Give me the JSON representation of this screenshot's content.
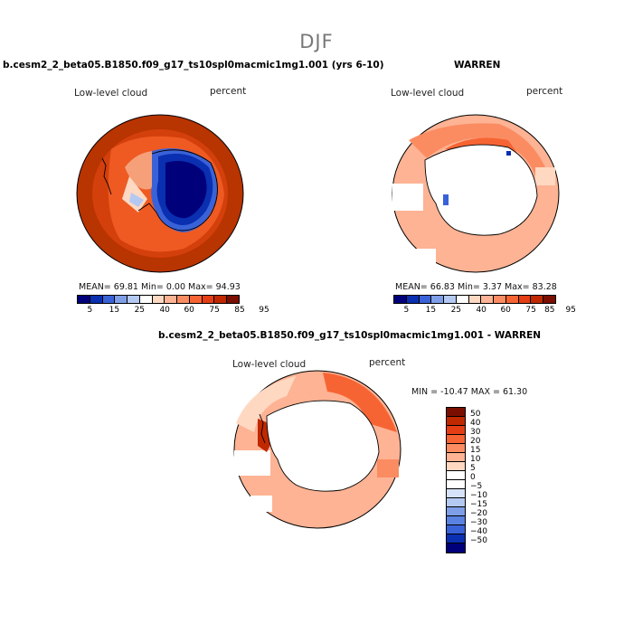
{
  "figure_title": "DJF",
  "panels": {
    "top_left": {
      "title": "b.cesm2_2_beta05.B1850.f09_g17_ts10spl0macmic1mg1.001 (yrs 6-10)",
      "variable": "Low-level cloud",
      "units": "percent",
      "stats": "MEAN=  69.81  Min=   0.00  Max=  94.93"
    },
    "top_right": {
      "title": "WARREN",
      "variable": "Low-level cloud",
      "units": "percent",
      "stats": "MEAN=  66.83  Min=   3.37  Max=  83.28"
    },
    "bottom": {
      "title": "b.cesm2_2_beta05.B1850.f09_g17_ts10spl0macmic1mg1.001 - WARREN",
      "variable": "Low-level cloud",
      "units": "percent",
      "stats": "MIN = -10.47 MAX =  61.30"
    }
  },
  "colorbar_abs": {
    "colors": [
      "#00007a",
      "#0a2fb0",
      "#3a62d8",
      "#7e9fe8",
      "#b4c9f2",
      "#ffffff",
      "#ffd8c2",
      "#fdb394",
      "#fb8c62",
      "#f76433",
      "#e53e14",
      "#c02800",
      "#7a0e00"
    ],
    "tick_labels": [
      "5",
      "15",
      "25",
      "40",
      "60",
      "75",
      "85",
      "95"
    ]
  },
  "colorbar_diff": {
    "colors": [
      "#7a0e00",
      "#c02800",
      "#e53e14",
      "#f76433",
      "#fb8c62",
      "#fdb394",
      "#ffd8c2",
      "#ffffff",
      "#ffffff",
      "#d6e2f7",
      "#b4c9f2",
      "#7e9fe8",
      "#5a82e0",
      "#3a62d8",
      "#0a2fb0",
      "#00007a"
    ],
    "tick_labels": [
      "50",
      "40",
      "30",
      "20",
      "15",
      "10",
      "5",
      "0",
      "−5",
      "−10",
      "−15",
      "−20",
      "−30",
      "−40",
      "−50"
    ]
  }
}
